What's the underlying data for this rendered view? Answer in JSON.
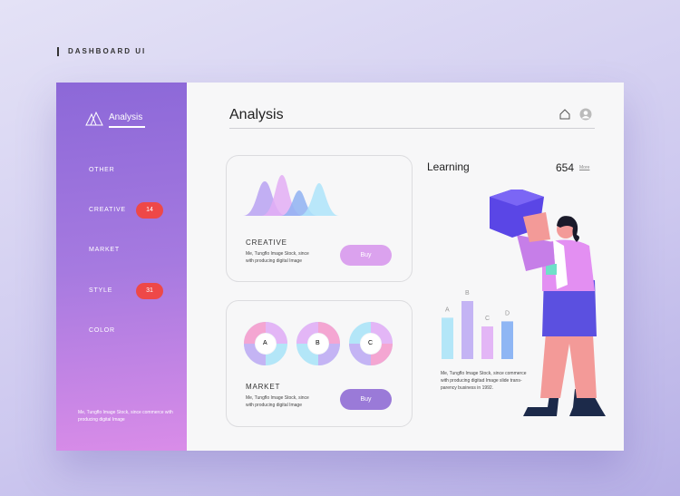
{
  "brand": "DASHBOARD UI",
  "sidebar": {
    "logo": "Analysis",
    "items": [
      {
        "label": "OTHER"
      },
      {
        "label": "CREATIVE",
        "badge": "14"
      },
      {
        "label": "MARKET"
      },
      {
        "label": "STYLE",
        "badge": "31"
      },
      {
        "label": "COLOR"
      }
    ],
    "note": "Me, Tungflo Image Stock, since commerce with producing digital Image"
  },
  "header": {
    "title": "Analysis",
    "icons": [
      "home-icon",
      "user-icon"
    ]
  },
  "creative": {
    "title": "CREATIVE",
    "note": "Me, Tungflo Image Stock, since with producing digital Image",
    "button": "Buy",
    "button_color": "#dba2ee"
  },
  "market": {
    "title": "MARKET",
    "note": "Me, Tungflo Image Stock, since with producing digital Image",
    "button": "Buy",
    "button_color": "#9a7ad8",
    "donuts": [
      "A",
      "B",
      "C"
    ]
  },
  "learning": {
    "title": "Learning",
    "count": "654",
    "more": "More",
    "note": "Me, Tungflo Image Stock, since commerce with producing digitad Image slide trans-parency business in 1992.",
    "chart_data": {
      "type": "bar",
      "categories": [
        "A",
        "B",
        "C",
        "D"
      ],
      "values": [
        57,
        80,
        45,
        52
      ],
      "colors": [
        "#b3e6f8",
        "#c4b4f4",
        "#e3b6f6",
        "#8fb6f4"
      ]
    }
  },
  "colors": {
    "accent": "#8c68d8",
    "badge": "#ee4848"
  }
}
